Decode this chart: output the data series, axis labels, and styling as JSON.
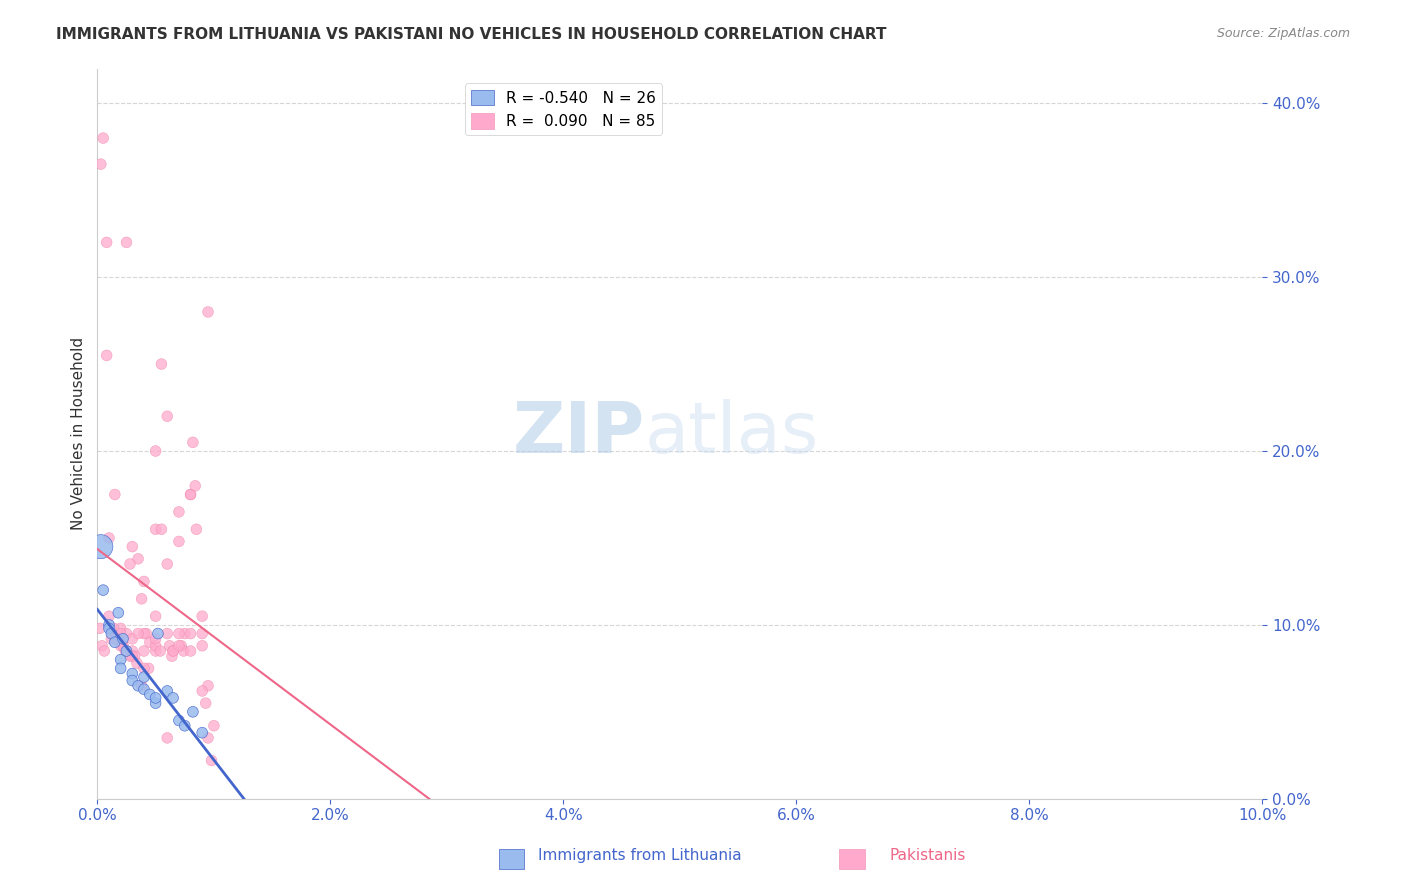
{
  "title": "IMMIGRANTS FROM LITHUANIA VS PAKISTANI NO VEHICLES IN HOUSEHOLD CORRELATION CHART",
  "source_text": "Source: ZipAtlas.com",
  "ylabel": "No Vehicles in Household",
  "legend_labels": [
    "Immigrants from Lithuania",
    "Pakistanis"
  ],
  "legend_r": [
    -0.54,
    0.09
  ],
  "legend_n": [
    26,
    85
  ],
  "blue_color": "#99bbee",
  "pink_color": "#ffaacc",
  "trend_blue": "#4466cc",
  "trend_pink": "#ee6688",
  "watermark_zip": "ZIP",
  "watermark_atlas": "atlas",
  "xlim": [
    0.0,
    0.1
  ],
  "ylim": [
    0.0,
    0.42
  ],
  "yticks": [
    0.0,
    0.1,
    0.2,
    0.3,
    0.4
  ],
  "xticks": [
    0.0,
    0.02,
    0.04,
    0.06,
    0.08,
    0.1
  ],
  "blue_x": [
    0.0003,
    0.0005,
    0.001,
    0.001,
    0.0012,
    0.0015,
    0.0018,
    0.002,
    0.002,
    0.0022,
    0.0025,
    0.003,
    0.003,
    0.0035,
    0.004,
    0.004,
    0.0045,
    0.005,
    0.005,
    0.0052,
    0.006,
    0.0065,
    0.007,
    0.0075,
    0.0082,
    0.009
  ],
  "blue_y": [
    0.145,
    0.12,
    0.1,
    0.098,
    0.095,
    0.09,
    0.107,
    0.08,
    0.075,
    0.092,
    0.085,
    0.072,
    0.068,
    0.065,
    0.07,
    0.063,
    0.06,
    0.055,
    0.058,
    0.095,
    0.062,
    0.058,
    0.045,
    0.042,
    0.05,
    0.038
  ],
  "blue_size": [
    300,
    60,
    60,
    60,
    60,
    60,
    60,
    60,
    60,
    60,
    60,
    60,
    60,
    60,
    60,
    60,
    60,
    60,
    60,
    60,
    60,
    60,
    60,
    60,
    60,
    60
  ],
  "pink_x": [
    0.0002,
    0.0004,
    0.0006,
    0.001,
    0.001,
    0.0013,
    0.0015,
    0.0018,
    0.002,
    0.002,
    0.0022,
    0.0025,
    0.0028,
    0.003,
    0.003,
    0.0032,
    0.0035,
    0.004,
    0.004,
    0.0042,
    0.0045,
    0.005,
    0.005,
    0.005,
    0.0055,
    0.006,
    0.006,
    0.0062,
    0.0065,
    0.007,
    0.007,
    0.0072,
    0.0075,
    0.008,
    0.008,
    0.0085,
    0.009,
    0.009,
    0.0095,
    0.0095,
    0.0003,
    0.0008,
    0.0012,
    0.0016,
    0.002,
    0.0024,
    0.003,
    0.0034,
    0.004,
    0.0044,
    0.005,
    0.0054,
    0.006,
    0.0064,
    0.007,
    0.0074,
    0.008,
    0.0084,
    0.009,
    0.0093,
    0.0014,
    0.002,
    0.0028,
    0.0038,
    0.005,
    0.006,
    0.0038,
    0.004,
    0.0065,
    0.007,
    0.0015,
    0.0022,
    0.003,
    0.0035,
    0.005,
    0.008,
    0.009,
    0.0095,
    0.0098,
    0.01,
    0.0005,
    0.0008,
    0.0025,
    0.0055,
    0.0082
  ],
  "pink_y": [
    0.098,
    0.088,
    0.085,
    0.15,
    0.105,
    0.095,
    0.175,
    0.092,
    0.098,
    0.09,
    0.088,
    0.095,
    0.082,
    0.092,
    0.085,
    0.082,
    0.138,
    0.085,
    0.125,
    0.095,
    0.09,
    0.085,
    0.155,
    0.2,
    0.155,
    0.135,
    0.095,
    0.088,
    0.085,
    0.165,
    0.148,
    0.088,
    0.095,
    0.175,
    0.095,
    0.155,
    0.095,
    0.088,
    0.065,
    0.28,
    0.365,
    0.255,
    0.092,
    0.092,
    0.088,
    0.085,
    0.082,
    0.078,
    0.095,
    0.075,
    0.088,
    0.085,
    0.22,
    0.082,
    0.095,
    0.085,
    0.175,
    0.18,
    0.062,
    0.055,
    0.098,
    0.095,
    0.135,
    0.115,
    0.105,
    0.035,
    0.065,
    0.075,
    0.085,
    0.088,
    0.092,
    0.088,
    0.145,
    0.095,
    0.092,
    0.085,
    0.105,
    0.035,
    0.022,
    0.042,
    0.38,
    0.32,
    0.32,
    0.25,
    0.205
  ],
  "pink_size": [
    60,
    60,
    60,
    60,
    60,
    60,
    60,
    60,
    60,
    60,
    60,
    60,
    60,
    60,
    60,
    60,
    60,
    60,
    60,
    60,
    60,
    60,
    60,
    60,
    60,
    60,
    60,
    60,
    60,
    60,
    60,
    60,
    60,
    60,
    60,
    60,
    60,
    60,
    60,
    60,
    60,
    60,
    60,
    60,
    60,
    60,
    60,
    60,
    60,
    60,
    60,
    60,
    60,
    60,
    60,
    60,
    60,
    60,
    60,
    60,
    60,
    60,
    60,
    60,
    60,
    60,
    60,
    60,
    60,
    60,
    60,
    60,
    60,
    60,
    60,
    60,
    60,
    60,
    60,
    60,
    60,
    60,
    60,
    60,
    60
  ]
}
